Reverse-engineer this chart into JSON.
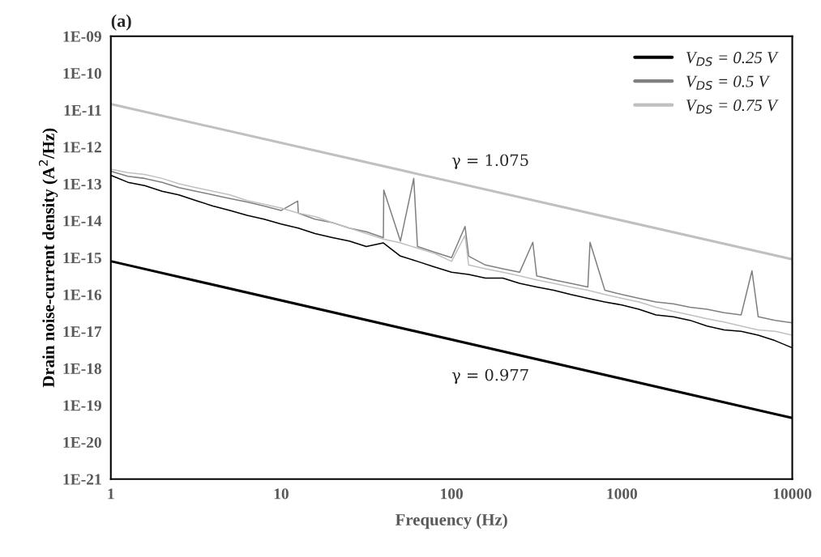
{
  "chart_data": {
    "type": "line",
    "title": "(a)",
    "xlabel": "Frequency (Hz)",
    "ylabel": "Drain noise-current density (A$^{2}$/Hz)",
    "log": "xy",
    "grid": false,
    "legend": "top right",
    "line_style": "solid",
    "marker": "none",
    "xlim": [
      1,
      10000
    ],
    "xticks": [
      1,
      10,
      100,
      1000,
      10000
    ],
    "ylim": [
      1e-21,
      1e-09
    ],
    "yticks": [
      {
        "value": 1e-21,
        "label": "1E-21"
      },
      {
        "value": 1e-20,
        "label": "1E-20"
      },
      {
        "value": 1e-19,
        "label": "1E-19"
      },
      {
        "value": 1e-18,
        "label": "1E-18"
      },
      {
        "value": 1e-17,
        "label": "1E-17"
      },
      {
        "value": 1e-16,
        "label": "1E-16"
      },
      {
        "value": 1e-15,
        "label": "1E-15"
      },
      {
        "value": 1e-14,
        "label": "1E-14"
      },
      {
        "value": 1e-13,
        "label": "1E-13"
      },
      {
        "value": 1e-12,
        "label": "1E-12"
      },
      {
        "value": 1e-11,
        "label": "1E-11"
      },
      {
        "value": 1e-10,
        "label": "1E-10"
      },
      {
        "value": 1e-09,
        "label": "1E-09"
      }
    ],
    "annotations": [
      "γ = 1.075",
      "γ = 0.977"
    ],
    "series": [
      {
        "name": "V$_{DS}$ = 0.25 V",
        "color": "#000000",
        "x": [
          1,
          1.26,
          1.58,
          2,
          2.51,
          3.16,
          3.98,
          5.01,
          6.31,
          7.94,
          10,
          12.6,
          15.8,
          20,
          25.1,
          31.6,
          39.8,
          50.1,
          63.1,
          79.4,
          100,
          126,
          158,
          200,
          251,
          316,
          398,
          501,
          631,
          794,
          1000,
          1259,
          1585,
          1995,
          2512,
          3162,
          3981,
          5012,
          6310,
          7943,
          10000
        ],
        "values": [
          1.7e-13,
          1.1e-13,
          8.9e-14,
          6.3e-14,
          5e-14,
          3.5e-14,
          2.5e-14,
          1.9e-14,
          1.4e-14,
          1.1e-14,
          8.1e-15,
          6.3e-15,
          4.5e-15,
          3.5e-15,
          2.8e-15,
          2e-15,
          2.5e-15,
          1.1e-15,
          7.9e-16,
          5.6e-16,
          4e-16,
          3.5e-16,
          2.8e-16,
          2.8e-16,
          2e-16,
          1.6e-16,
          1.3e-16,
          1e-16,
          7.9e-17,
          6.3e-17,
          5.2e-17,
          4e-17,
          2.8e-17,
          2.5e-17,
          2e-17,
          1.4e-17,
          1.1e-17,
          1e-17,
          7.9e-18,
          5.6e-18,
          3.6e-18
        ]
      },
      {
        "name": "V$_{DS}$ = 0.5 V",
        "color": "#808080",
        "x": [
          1,
          1.26,
          1.58,
          2,
          2.51,
          3.16,
          3.98,
          5.01,
          6.31,
          7.94,
          10,
          12.5,
          12.6,
          15.8,
          20,
          25.1,
          31.6,
          39.8,
          40,
          50.1,
          60,
          63.1,
          79.4,
          100,
          120,
          126,
          158,
          200,
          251,
          300,
          316,
          398,
          501,
          631,
          650,
          794,
          1000,
          1259,
          1585,
          1995,
          2512,
          3162,
          3981,
          5012,
          5800,
          6310,
          7943,
          10000
        ],
        "values": [
          2.2e-13,
          1.6e-13,
          1.4e-13,
          1.1e-13,
          7.9e-14,
          6.3e-14,
          5e-14,
          4e-14,
          3.2e-14,
          2.5e-14,
          1.9e-14,
          3.4e-14,
          1.6e-14,
          1.1e-14,
          8.9e-15,
          6.3e-15,
          5e-15,
          3.5e-15,
          6.8e-14,
          2.8e-15,
          1.4e-13,
          2e-15,
          1.4e-15,
          1e-15,
          7e-15,
          1.1e-15,
          6.3e-16,
          5e-16,
          4e-16,
          2.6e-15,
          3.2e-16,
          2.5e-16,
          2e-16,
          1.6e-16,
          2.6e-15,
          1.3e-16,
          1e-16,
          7.9e-17,
          6.3e-17,
          5.6e-17,
          4.5e-17,
          4e-17,
          3.2e-17,
          2.8e-17,
          4.4e-16,
          2.5e-17,
          2e-17,
          1.7e-17
        ]
      },
      {
        "name": "V$_{DS}$ = 0.75 V",
        "color": "#c0c0c0",
        "x": [
          1,
          1.26,
          1.58,
          2,
          2.51,
          3.16,
          3.98,
          5.01,
          6.31,
          7.94,
          10,
          12.6,
          15.8,
          20,
          25.1,
          31.6,
          39.8,
          50.1,
          63.1,
          79.4,
          100,
          120,
          126,
          158,
          200,
          251,
          316,
          398,
          501,
          631,
          794,
          1000,
          1259,
          1585,
          1995,
          2512,
          3162,
          3981,
          5012,
          6310,
          7943,
          10000
        ],
        "values": [
          2.5e-13,
          2e-13,
          1.8e-13,
          1.4e-13,
          1e-13,
          7.9e-14,
          6.3e-14,
          5e-14,
          3.5e-14,
          2.8e-14,
          2.2e-14,
          1.6e-14,
          1.3e-14,
          8.9e-15,
          6.3e-15,
          4.5e-15,
          3.2e-15,
          2.5e-15,
          1.8e-15,
          1.3e-15,
          7.9e-16,
          4e-15,
          6.3e-16,
          5e-16,
          4e-16,
          3.2e-16,
          2.5e-16,
          2e-16,
          1.6e-16,
          1.3e-16,
          1e-16,
          7.9e-17,
          6.3e-17,
          4.5e-17,
          3.5e-17,
          2.8e-17,
          2.2e-17,
          1.8e-17,
          1.4e-17,
          1.1e-17,
          1e-17,
          7.9e-18
        ]
      },
      {
        "color": "#c0c0c0",
        "x": [
          1,
          10000
        ],
        "values": [
          1.45e-11,
          9e-16
        ]
      },
      {
        "color": "#000000",
        "x": [
          1,
          10000
        ],
        "values": [
          8e-16,
          4.5e-20
        ]
      }
    ]
  }
}
